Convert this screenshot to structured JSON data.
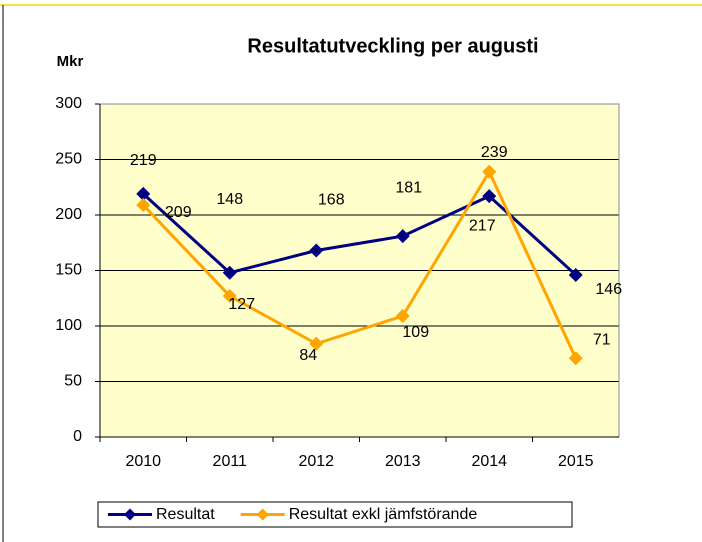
{
  "chart_data": {
    "type": "line",
    "title": "Resultatutveckling per augusti",
    "y_label": "Mkr",
    "categories": [
      "2010",
      "2011",
      "2012",
      "2013",
      "2014",
      "2015"
    ],
    "series": [
      {
        "name": "Resultat",
        "color": "#000080",
        "values": [
          219,
          148,
          168,
          181,
          217,
          146
        ]
      },
      {
        "name": "Resultat exkl jämfstörande",
        "color": "#ffa500",
        "values": [
          209,
          127,
          84,
          109,
          239,
          71
        ]
      }
    ],
    "ylim": [
      0,
      300
    ],
    "yticks": [
      0,
      50,
      100,
      150,
      200,
      250,
      300
    ],
    "grid": true,
    "legend": "bottom"
  }
}
